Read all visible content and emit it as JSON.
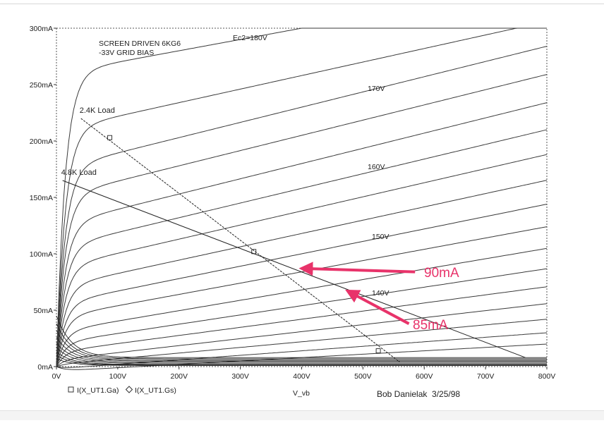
{
  "chart_data": {
    "type": "line",
    "notes": [
      "SCREEN DRIVEN 6KG6",
      "-33V GRID BIAS"
    ],
    "x_tick_labels": [
      "0V",
      "100V",
      "200V",
      "300V",
      "400V",
      "500V",
      "600V",
      "700V",
      "800V"
    ],
    "y_tick_labels": [
      "0mA",
      "50mA",
      "100mA",
      "150mA",
      "200mA",
      "250mA",
      "300mA"
    ],
    "xlim": [
      0,
      800
    ],
    "ylim": [
      0,
      300
    ],
    "x_unit": "V",
    "y_unit": "mA",
    "xlabel": "V_vb",
    "credit": "Bob Danielak  3/25/98",
    "legend": {
      "ga_label": "I(X_UT1.Ga)",
      "gs_label": "I(X_UT1.Gs)"
    },
    "curve_labels": [
      "Ec2=180V",
      "170V",
      "160V",
      "150V",
      "140V"
    ],
    "plate_curves": [
      {
        "knee": 300,
        "slope": 0.1
      },
      {
        "knee": 258,
        "slope": 0.12
      },
      {
        "knee": 230,
        "slope": 0.135
      },
      {
        "knee": 205,
        "slope": 0.135
      },
      {
        "knee": 180,
        "slope": 0.135
      },
      {
        "knee": 158,
        "slope": 0.13
      },
      {
        "knee": 138,
        "slope": 0.125
      },
      {
        "knee": 118,
        "slope": 0.118
      },
      {
        "knee": 100,
        "slope": 0.11
      },
      {
        "knee": 84,
        "slope": 0.1
      },
      {
        "knee": 68,
        "slope": 0.092
      },
      {
        "knee": 54,
        "slope": 0.082
      },
      {
        "knee": 42,
        "slope": 0.072
      },
      {
        "knee": 31,
        "slope": 0.062
      },
      {
        "knee": 22,
        "slope": 0.05
      },
      {
        "knee": 14,
        "slope": 0.04
      },
      {
        "knee": 8,
        "slope": 0.03
      }
    ],
    "screen_curves": [
      {
        "peak": 45,
        "tail": 8
      },
      {
        "peak": 38,
        "tail": 7
      },
      {
        "peak": 32,
        "tail": 6
      },
      {
        "peak": 26,
        "tail": 5
      },
      {
        "peak": 21,
        "tail": 4
      },
      {
        "peak": 17,
        "tail": 3
      },
      {
        "peak": 13,
        "tail": 2
      },
      {
        "peak": 10,
        "tail": 1.5
      },
      {
        "peak": 7,
        "tail": 1
      }
    ],
    "load_lines": [
      {
        "label": "2.4K Load",
        "x": [
          40,
          560
        ],
        "y": [
          220,
          4
        ]
      },
      {
        "label": "4.8K Load",
        "x": [
          10,
          765
        ],
        "y": [
          165,
          8
        ]
      }
    ],
    "markers": [
      {
        "x": 87,
        "y": 203
      },
      {
        "x": 322,
        "y": 102
      },
      {
        "x": 525,
        "y": 14
      }
    ],
    "annotations": [
      {
        "text": "90mA",
        "color": "#e8336a",
        "from": [
          585,
          84
        ],
        "to": [
          400,
          87
        ]
      },
      {
        "text": "85mA",
        "color": "#e8336a",
        "from": [
          575,
          38
        ],
        "to": [
          475,
          67
        ]
      }
    ]
  }
}
